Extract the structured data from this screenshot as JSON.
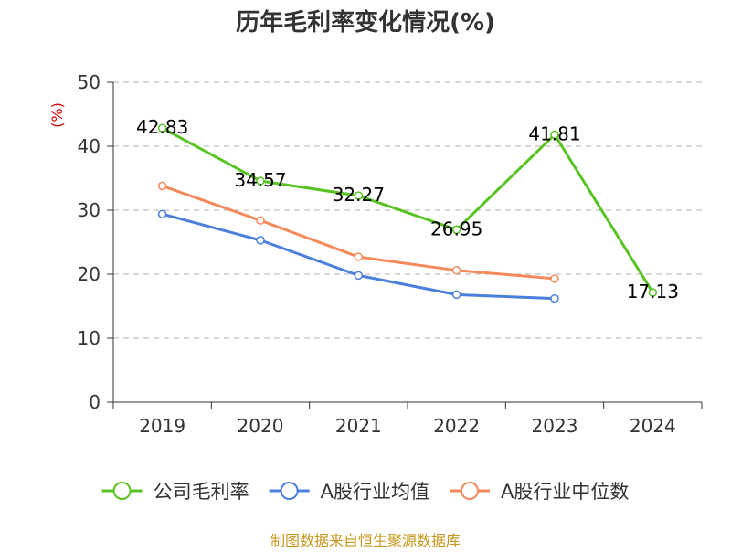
{
  "source": "制图数据来自恒生聚源数据库",
  "chart_data": {
    "type": "line",
    "title": "历年毛利率变化情况(%)",
    "ylabel": "(%)",
    "xlabel": "",
    "categories": [
      "2019",
      "2020",
      "2021",
      "2022",
      "2023",
      "2024"
    ],
    "ylim": [
      0,
      50
    ],
    "yticks": [
      0,
      10,
      20,
      30,
      40,
      50
    ],
    "grid": true,
    "legend_position": "bottom",
    "series": [
      {
        "name": "公司毛利率",
        "color": "#58c322",
        "values": [
          42.83,
          34.57,
          32.27,
          26.95,
          41.81,
          17.13
        ],
        "labels": [
          "42.83",
          "34.57",
          "32.27",
          "26.95",
          "41.81",
          "17.13"
        ],
        "show_labels": true
      },
      {
        "name": "A股行业均值",
        "color": "#4a7fdc",
        "values": [
          29.4,
          25.3,
          19.8,
          16.8,
          16.2,
          null
        ],
        "show_labels": false
      },
      {
        "name": "A股行业中位数",
        "color": "#f5895a",
        "values": [
          33.8,
          28.4,
          22.7,
          20.6,
          19.3,
          null
        ],
        "show_labels": false
      }
    ]
  }
}
